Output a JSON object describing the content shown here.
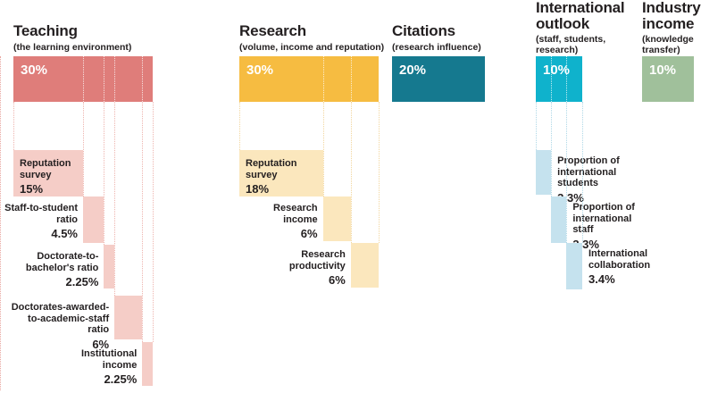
{
  "chart_data": {
    "type": "bar",
    "unit": "%",
    "categories": [
      "Teaching",
      "Research",
      "Citations",
      "International outlook",
      "Industry income"
    ],
    "values": [
      30,
      30,
      20,
      10,
      10
    ],
    "grid": "dotted-vertical-guides",
    "pillars": [
      {
        "id": "teaching",
        "name": "Teaching",
        "subtitle": "(the learning environment)",
        "weight": 30,
        "weight_label": "30%",
        "color": "#df7d7a",
        "light_color": "#f5cdc7",
        "guide_color": "#eeb4ae",
        "sub_indicators": [
          {
            "label": "Reputation\nsurvey",
            "value": 15,
            "value_label": "15%",
            "label_side": "inside"
          },
          {
            "label": "Staff-to-student\nratio",
            "value": 4.5,
            "value_label": "4.5%",
            "label_side": "left"
          },
          {
            "label": "Doctorate-to-\nbachelor's ratio",
            "value": 2.25,
            "value_label": "2.25%",
            "label_side": "left"
          },
          {
            "label": "Doctorates-awarded-\nto-academic-staff\nratio",
            "value": 6,
            "value_label": "6%",
            "label_side": "left"
          },
          {
            "label": "Institutional\nincome",
            "value": 2.25,
            "value_label": "2.25%",
            "label_side": "left"
          }
        ]
      },
      {
        "id": "research",
        "name": "Research",
        "subtitle": "(volume, income and reputation)",
        "weight": 30,
        "weight_label": "30%",
        "color": "#f6bc41",
        "light_color": "#fbe7bd",
        "guide_color": "#f2d69e",
        "sub_indicators": [
          {
            "label": "Reputation\nsurvey",
            "value": 18,
            "value_label": "18%",
            "label_side": "inside"
          },
          {
            "label": "Research\nincome",
            "value": 6,
            "value_label": "6%",
            "label_side": "left"
          },
          {
            "label": "Research\nproductivity",
            "value": 6,
            "value_label": "6%",
            "label_side": "left"
          }
        ]
      },
      {
        "id": "citations",
        "name": "Citations",
        "subtitle": "(research influence)",
        "weight": 20,
        "weight_label": "20%",
        "color": "#15798f",
        "light_color": "#15798f",
        "sub_indicators": []
      },
      {
        "id": "international-outlook",
        "name": "International\noutlook",
        "subtitle": "(staff, students,\nresearch)",
        "weight": 10,
        "weight_label": "10%",
        "color": "#0fb2cc",
        "light_color": "#c5e2ee",
        "guide_color": "#afd8e7",
        "sub_indicators": [
          {
            "label": "Proportion of\ninternational\nstudents",
            "value": 3.3,
            "value_label": "3.3%",
            "label_side": "right"
          },
          {
            "label": "Proportion of\ninternational\nstaff",
            "value": 3.3,
            "value_label": "3.3%",
            "label_side": "right"
          },
          {
            "label": "International\ncollaboration",
            "value": 3.4,
            "value_label": "3.4%",
            "label_side": "right"
          }
        ]
      },
      {
        "id": "industry-income",
        "name": "Industry\nincome",
        "subtitle": "(knowledge\ntransfer)",
        "weight": 10,
        "weight_label": "10%",
        "color": "#a0c09b",
        "light_color": "#a0c09b",
        "sub_indicators": []
      }
    ],
    "left_edge_guide_color": "#e9a7a1"
  }
}
